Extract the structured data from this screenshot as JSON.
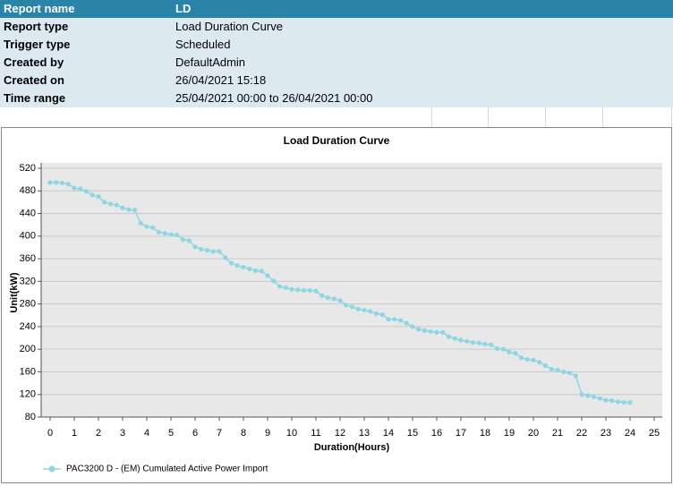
{
  "report": {
    "rows": [
      [
        "Report name",
        "LD"
      ],
      [
        "Report type",
        "Load Duration Curve"
      ],
      [
        "Trigger type",
        "Scheduled"
      ],
      [
        "Created by",
        "DefaultAdmin"
      ],
      [
        "Created on",
        "26/04/2021 15:18"
      ],
      [
        "Time range",
        "25/04/2021 00:00 to 26/04/2021 00:00"
      ]
    ]
  },
  "chart_data": {
    "type": "line",
    "title": "Load Duration Curve",
    "x_label": "Duration(Hours)",
    "y_label": "Unit(kW)",
    "x": [
      0,
      0.25,
      0.5,
      0.75,
      1,
      1.25,
      1.5,
      1.75,
      2,
      2.25,
      2.5,
      2.75,
      3,
      3.25,
      3.5,
      3.75,
      4,
      4.25,
      4.5,
      4.75,
      5,
      5.25,
      5.5,
      5.75,
      6,
      6.25,
      6.5,
      6.75,
      7,
      7.25,
      7.5,
      7.75,
      8,
      8.25,
      8.5,
      8.75,
      9,
      9.25,
      9.5,
      9.75,
      10,
      10.25,
      10.5,
      10.75,
      11,
      11.25,
      11.5,
      11.75,
      12,
      12.25,
      12.5,
      12.75,
      13,
      13.25,
      13.5,
      13.75,
      14,
      14.25,
      14.5,
      14.75,
      15,
      15.25,
      15.5,
      15.75,
      16,
      16.25,
      16.5,
      16.75,
      17,
      17.25,
      17.5,
      17.75,
      18,
      18.25,
      18.5,
      18.75,
      19,
      19.25,
      19.5,
      19.75,
      20,
      20.25,
      20.5,
      20.75,
      21,
      21.25,
      21.5,
      21.75,
      22,
      22.25,
      22.5,
      22.75,
      23,
      23.25,
      23.5,
      23.75,
      24
    ],
    "series": [
      {
        "name": "PAC3200 D - (EM) Cumulated Active Power Import",
        "color": "#8fd6e4",
        "values": [
          495,
          495,
          494,
          492,
          485,
          484,
          479,
          473,
          470,
          460,
          457,
          455,
          450,
          447,
          446,
          423,
          417,
          415,
          407,
          405,
          403,
          402,
          394,
          392,
          381,
          377,
          375,
          373,
          373,
          362,
          352,
          348,
          345,
          342,
          339,
          338,
          330,
          321,
          311,
          309,
          306,
          305,
          304,
          304,
          303,
          295,
          291,
          289,
          286,
          278,
          275,
          271,
          269,
          267,
          263,
          261,
          253,
          253,
          251,
          246,
          240,
          235,
          233,
          231,
          230,
          230,
          222,
          219,
          216,
          214,
          212,
          211,
          209,
          208,
          201,
          200,
          195,
          193,
          185,
          182,
          181,
          177,
          171,
          165,
          163,
          160,
          158,
          153,
          120,
          118,
          116,
          113,
          110,
          109,
          107,
          106,
          106
        ]
      }
    ],
    "xlim": [
      0,
      25
    ],
    "xticks": [
      0,
      1,
      2,
      3,
      4,
      5,
      6,
      7,
      8,
      9,
      10,
      11,
      12,
      13,
      14,
      15,
      16,
      17,
      18,
      19,
      20,
      21,
      22,
      23,
      24,
      25
    ],
    "ylim": [
      80,
      520
    ],
    "yticks": [
      80,
      120,
      160,
      200,
      240,
      280,
      320,
      360,
      400,
      440,
      480,
      520
    ],
    "grid": true
  }
}
